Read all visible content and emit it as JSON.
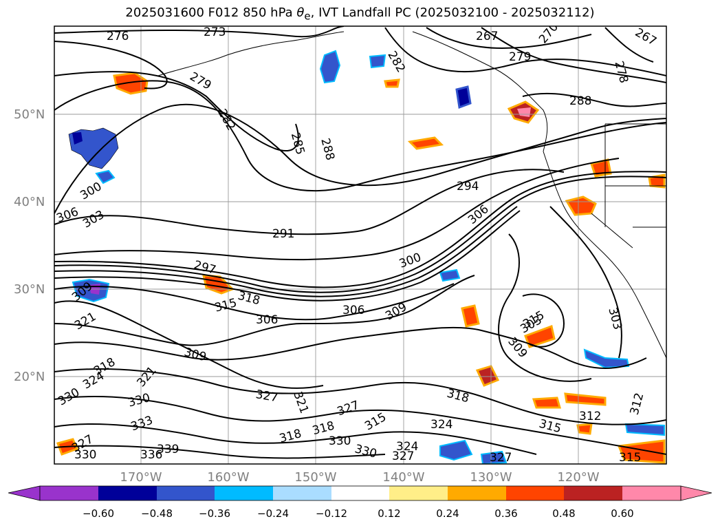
{
  "title": "2025031600 F012 850 hPa θe, IVT Landfall PC (2025032100 - 2025032112)",
  "title_parts": {
    "prefix": "2025031600 F012 850 hPa ",
    "theta": "θ",
    "sub": "e",
    "suffix": ", IVT Landfall PC (2025032100 - 2025032112)"
  },
  "lat_labels": [
    "50°N",
    "40°N",
    "30°N",
    "20°N"
  ],
  "lon_labels": [
    "170°W",
    "160°W",
    "150°W",
    "140°W",
    "130°W",
    "120°W"
  ],
  "contour_labels": [
    "276",
    "273",
    "267",
    "270",
    "267",
    "279",
    "278",
    "282",
    "282",
    "285",
    "288",
    "279",
    "288",
    "294",
    "300",
    "306",
    "303",
    "306",
    "291",
    "297",
    "300",
    "309",
    "318",
    "315",
    "306",
    "303",
    "309",
    "306",
    "309",
    "321",
    "303",
    "309",
    "318",
    "321",
    "324",
    "330",
    "327",
    "318",
    "327",
    "330",
    "321",
    "333",
    "318",
    "330",
    "336",
    "339",
    "327",
    "318",
    "315",
    "324",
    "330",
    "327",
    "324",
    "330",
    "327",
    "315",
    "312",
    "312",
    "315",
    "315"
  ],
  "colorbar": {
    "ticks": [
      "−0.60",
      "−0.48",
      "−0.36",
      "−0.24",
      "−0.12",
      "0.12",
      "0.24",
      "0.36",
      "0.48",
      "0.60"
    ],
    "colors": [
      "#9933cc",
      "#000099",
      "#3355cc",
      "#00bbff",
      "#aaddff",
      "#ffffff",
      "#ffee88",
      "#ffaa00",
      "#ff4400",
      "#bb2222",
      "#ff88aa"
    ]
  },
  "colors": {
    "theta_contour": "#000000",
    "grid": "#999999",
    "coast": "#000000",
    "axis_label": "#808080"
  }
}
